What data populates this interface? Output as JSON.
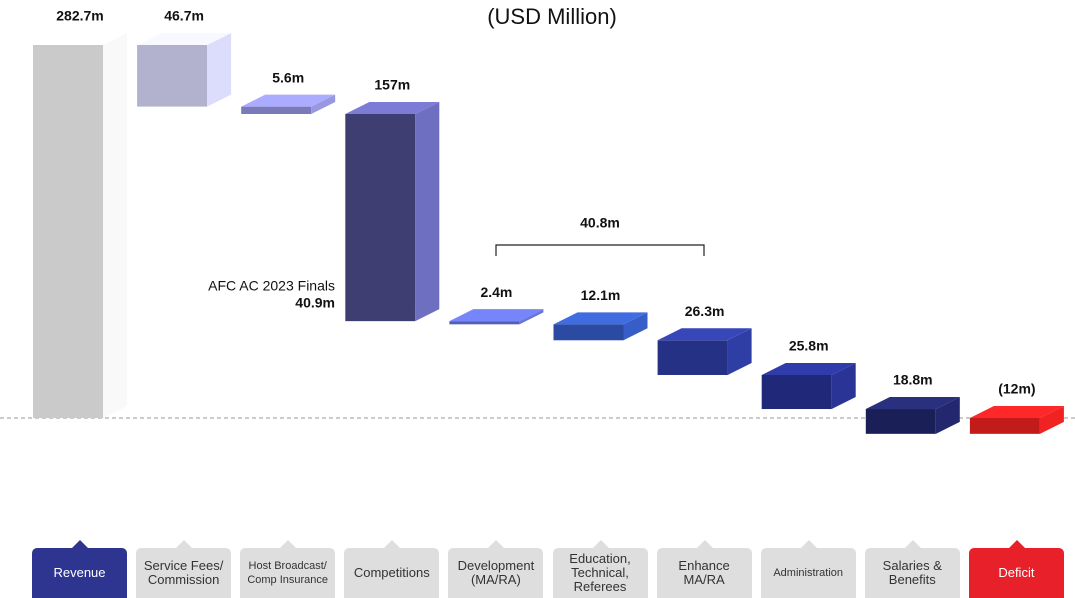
{
  "chart_data": {
    "type": "waterfall",
    "title": "(USD Million)",
    "categories": [
      "Revenue",
      "Service Fees/\nCommission",
      "Host Broadcast/\nComp Insurance",
      "Competitions",
      "Development\n(MA/RA)",
      "Education,\nTechnical,\nReferees",
      "Enhance\nMA/RA",
      "Administration",
      "Salaries &\nBenefits",
      "Deficit"
    ],
    "values": [
      282.7,
      46.7,
      5.6,
      157,
      2.4,
      12.1,
      26.3,
      25.8,
      18.8,
      -12
    ],
    "value_labels": [
      "282.7m",
      "46.7m",
      "5.6m",
      "157m",
      "2.4m",
      "12.1m",
      "26.3m",
      "25.8m",
      "18.8m",
      "(12m)"
    ],
    "colors": [
      "#dcdcdc",
      "#c2c2e0",
      "#8585c8",
      "#3e3e72",
      "#5a66c4",
      "#2f52b0",
      "#283590",
      "#232c85",
      "#1d2260",
      "#d41c1c"
    ],
    "button_colors": [
      "#2e3590",
      "#dedede",
      "#dedede",
      "#dedede",
      "#dedede",
      "#dedede",
      "#dedede",
      "#dedede",
      "#dedede",
      "#e8202a"
    ],
    "annotations": [
      {
        "text": "AFC AC 2023 Finals",
        "value_label": "40.9m"
      },
      {
        "value_label": "40.8m"
      }
    ]
  }
}
